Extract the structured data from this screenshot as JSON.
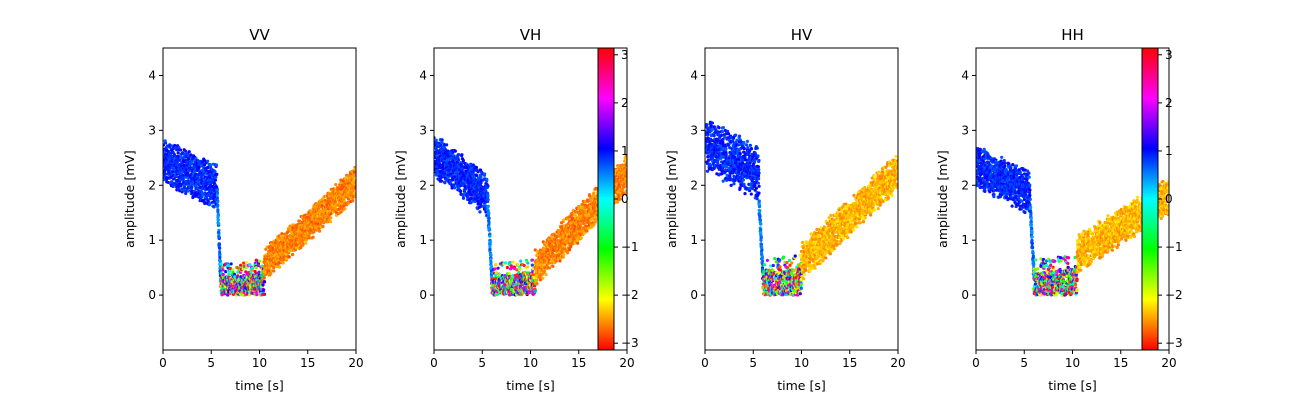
{
  "chart_data": [
    {
      "type": "scatter",
      "title": "VV",
      "xlabel": "time [s]",
      "ylabel": "amplitude [mV]",
      "xlim": [
        0,
        20
      ],
      "ylim": [
        -1,
        4.5
      ],
      "xticks": [
        "0",
        "5",
        "10",
        "15",
        "20"
      ],
      "yticks": [
        "0",
        "1",
        "2",
        "3",
        "4"
      ],
      "colorbar": false,
      "segments": [
        {
          "x0": 0.0,
          "x1": 5.6,
          "y0": 2.45,
          "y1": 1.95,
          "spread": 0.42,
          "phase": 0.9
        },
        {
          "x0": 5.6,
          "x1": 6.0,
          "y0": 1.9,
          "y1": 0.2,
          "spread": 0.08,
          "phase": 0.6
        },
        {
          "x0": 6.0,
          "x1": 10.5,
          "y0": 0.2,
          "y1": 0.25,
          "spread": 0.22,
          "phase": "mixed"
        },
        {
          "x0": 10.5,
          "x1": 20.0,
          "y0": 0.55,
          "y1": 2.05,
          "spread": 0.3,
          "phase": -2.6
        }
      ]
    },
    {
      "type": "scatter",
      "title": "VH",
      "xlabel": "time [s]",
      "ylabel": "amplitude [mV]",
      "xlim": [
        0,
        20
      ],
      "ylim": [
        -1,
        4.5
      ],
      "xticks": [
        "0",
        "5",
        "10",
        "15",
        "20"
      ],
      "yticks": [
        "0",
        "1",
        "2",
        "3",
        "4"
      ],
      "colorbar": true,
      "segments": [
        {
          "x0": 0.0,
          "x1": 5.6,
          "y0": 2.55,
          "y1": 1.8,
          "spread": 0.4,
          "phase": 0.9
        },
        {
          "x0": 5.6,
          "x1": 6.0,
          "y0": 1.6,
          "y1": 0.25,
          "spread": 0.08,
          "phase": 0.6
        },
        {
          "x0": 6.0,
          "x1": 10.5,
          "y0": 0.2,
          "y1": 0.25,
          "spread": 0.22,
          "phase": "mixed"
        },
        {
          "x0": 10.5,
          "x1": 20.0,
          "y0": 0.5,
          "y1": 2.2,
          "spread": 0.35,
          "phase": -2.6
        }
      ]
    },
    {
      "type": "scatter",
      "title": "HV",
      "xlabel": "time [s]",
      "ylabel": "amplitude [mV]",
      "xlim": [
        0,
        20
      ],
      "ylim": [
        -1,
        4.5
      ],
      "xticks": [
        "0",
        "5",
        "10",
        "15",
        "20"
      ],
      "yticks": [
        "0",
        "1",
        "2",
        "3",
        "4"
      ],
      "colorbar": false,
      "segments": [
        {
          "x0": 0.0,
          "x1": 5.6,
          "y0": 2.75,
          "y1": 2.2,
          "spread": 0.5,
          "phase": 0.9
        },
        {
          "x0": 5.6,
          "x1": 6.0,
          "y0": 1.7,
          "y1": 0.35,
          "spread": 0.08,
          "phase": 0.6
        },
        {
          "x0": 6.0,
          "x1": 10.0,
          "y0": 0.25,
          "y1": 0.3,
          "spread": 0.25,
          "phase": "mixed"
        },
        {
          "x0": 10.0,
          "x1": 20.0,
          "y0": 0.6,
          "y1": 2.25,
          "spread": 0.35,
          "phase": -2.4
        }
      ]
    },
    {
      "type": "scatter",
      "title": "HH",
      "xlabel": "time [s]",
      "ylabel": "amplitude [mV]",
      "xlim": [
        0,
        20
      ],
      "ylim": [
        -1,
        4.5
      ],
      "xticks": [
        "0",
        "5",
        "10",
        "15",
        "20"
      ],
      "yticks": [
        "0",
        "1",
        "2",
        "3",
        "4"
      ],
      "colorbar": true,
      "segments": [
        {
          "x0": 0.0,
          "x1": 5.6,
          "y0": 2.35,
          "y1": 1.85,
          "spread": 0.4,
          "phase": 0.9
        },
        {
          "x0": 5.6,
          "x1": 6.0,
          "y0": 1.7,
          "y1": 0.35,
          "spread": 0.08,
          "phase": 0.6
        },
        {
          "x0": 6.0,
          "x1": 10.5,
          "y0": 0.25,
          "y1": 0.3,
          "spread": 0.25,
          "phase": "mixed"
        },
        {
          "x0": 10.5,
          "x1": 20.0,
          "y0": 0.75,
          "y1": 1.8,
          "spread": 0.35,
          "phase": -2.4
        }
      ]
    }
  ],
  "colorbar": {
    "range": [
      -3.14159,
      3.14159
    ],
    "ticks": [
      "3",
      "2",
      "1",
      "0",
      "−1",
      "−2",
      "−3"
    ],
    "colormap": "hsv"
  }
}
